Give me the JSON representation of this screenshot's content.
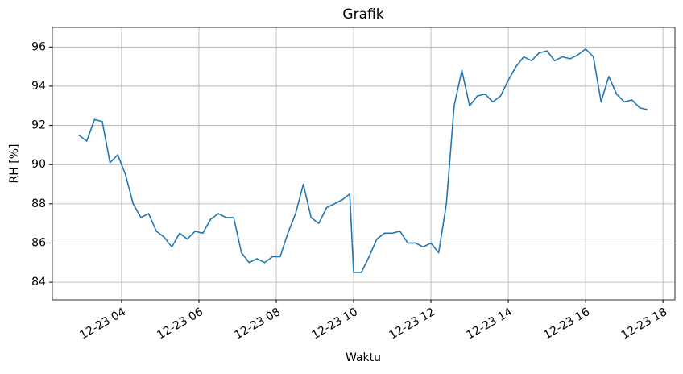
{
  "chart_data": {
    "type": "line",
    "title": "Grafik",
    "xlabel": "Waktu",
    "ylabel": "RH [%]",
    "x": [
      2.9,
      3.1,
      3.3,
      3.5,
      3.7,
      3.9,
      4.1,
      4.3,
      4.5,
      4.7,
      4.9,
      5.1,
      5.3,
      5.5,
      5.7,
      5.9,
      6.1,
      6.3,
      6.5,
      6.7,
      6.9,
      7.1,
      7.3,
      7.5,
      7.7,
      7.9,
      8.1,
      8.3,
      8.5,
      8.7,
      8.9,
      9.1,
      9.3,
      9.5,
      9.7,
      9.9,
      10.0,
      10.2,
      10.4,
      10.6,
      10.8,
      11.0,
      11.2,
      11.4,
      11.6,
      11.8,
      12.0,
      12.2,
      12.4,
      12.6,
      12.8,
      13.0,
      13.2,
      13.4,
      13.6,
      13.8,
      14.0,
      14.2,
      14.4,
      14.6,
      14.8,
      15.0,
      15.2,
      15.4,
      15.6,
      15.8,
      16.0,
      16.2,
      16.4,
      16.6,
      16.8,
      17.0,
      17.2,
      17.4,
      17.6
    ],
    "series": [
      {
        "color": "#1f77b4",
        "values": [
          91.5,
          91.2,
          92.3,
          92.2,
          90.1,
          90.5,
          89.5,
          88.0,
          87.3,
          87.5,
          86.6,
          86.3,
          85.8,
          86.5,
          86.2,
          86.6,
          86.5,
          87.2,
          87.5,
          87.3,
          87.3,
          85.5,
          85.0,
          85.2,
          85.0,
          85.3,
          85.3,
          86.5,
          87.5,
          89.0,
          87.3,
          87.0,
          87.8,
          88.0,
          88.2,
          88.5,
          84.5,
          84.5,
          85.3,
          86.2,
          86.5,
          86.5,
          86.6,
          86.0,
          86.0,
          85.8,
          86.0,
          85.5,
          88.0,
          93.0,
          94.8,
          93.0,
          93.5,
          93.6,
          93.2,
          93.5,
          94.3,
          95.0,
          95.5,
          95.3,
          95.7,
          95.8,
          95.3,
          95.5,
          95.4,
          95.6,
          95.9,
          95.5,
          93.2,
          94.5,
          93.6,
          93.2,
          93.3,
          92.9,
          92.8
        ]
      }
    ],
    "xlim": [
      2.21,
      18.31
    ],
    "xticks": [
      {
        "value": 4,
        "label": "12-23 04"
      },
      {
        "value": 6,
        "label": "12-23 06"
      },
      {
        "value": 8,
        "label": "12-23 08"
      },
      {
        "value": 10,
        "label": "12-23 10"
      },
      {
        "value": 12,
        "label": "12-23 12"
      },
      {
        "value": 14,
        "label": "12-23 14"
      },
      {
        "value": 16,
        "label": "12-23 16"
      },
      {
        "value": 18,
        "label": "12-23 18"
      }
    ],
    "ylim": [
      83.1,
      97
    ],
    "yticks": [
      84,
      86,
      88,
      90,
      92,
      94,
      96
    ],
    "grid": true
  }
}
